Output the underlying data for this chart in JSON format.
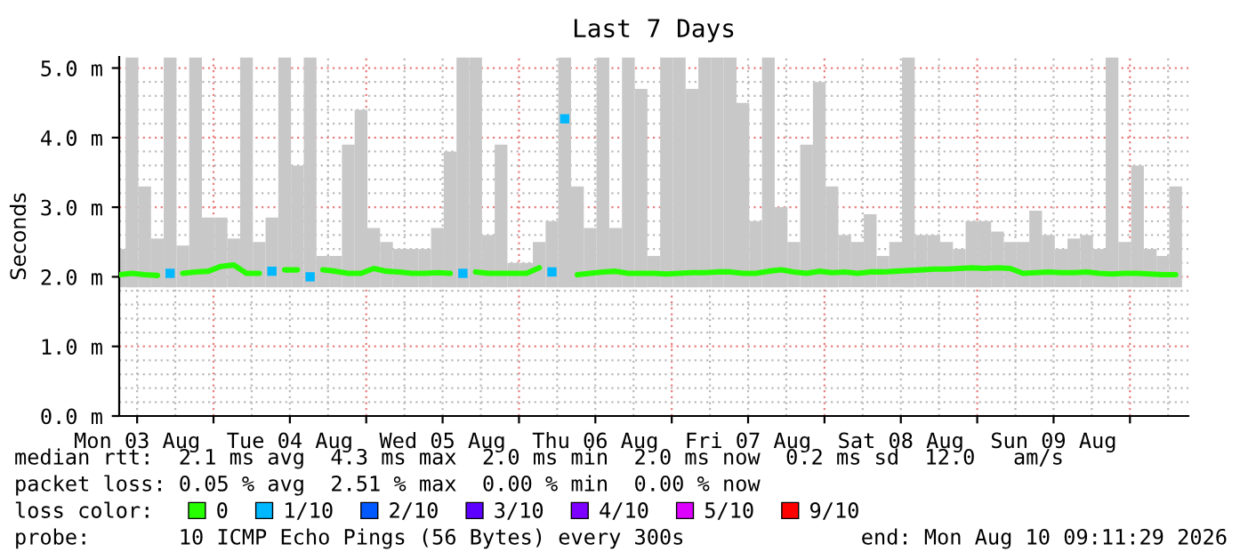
{
  "chart_data": {
    "type": "line",
    "title": "Last 7 Days",
    "ylabel": "Seconds",
    "legend_title": "loss color:",
    "x": [
      "2026-08-03T09:11",
      "2026-08-03T11:11",
      "2026-08-03T13:11",
      "2026-08-03T15:11",
      "2026-08-03T17:11",
      "2026-08-03T19:11",
      "2026-08-03T21:11",
      "2026-08-03T23:11",
      "2026-08-04T01:11",
      "2026-08-04T03:11",
      "2026-08-04T05:11",
      "2026-08-04T07:11",
      "2026-08-04T09:11",
      "2026-08-04T11:11",
      "2026-08-04T13:11",
      "2026-08-04T15:11",
      "2026-08-04T17:11",
      "2026-08-04T19:11",
      "2026-08-04T21:11",
      "2026-08-04T23:11",
      "2026-08-05T01:11",
      "2026-08-05T03:11",
      "2026-08-05T05:11",
      "2026-08-05T07:11",
      "2026-08-05T09:11",
      "2026-08-05T11:11",
      "2026-08-05T13:11",
      "2026-08-05T15:11",
      "2026-08-05T17:11",
      "2026-08-05T19:11",
      "2026-08-05T21:11",
      "2026-08-05T23:11",
      "2026-08-06T01:11",
      "2026-08-06T03:11",
      "2026-08-06T05:11",
      "2026-08-06T07:11",
      "2026-08-06T09:11",
      "2026-08-06T11:11",
      "2026-08-06T13:11",
      "2026-08-06T15:11",
      "2026-08-06T17:11",
      "2026-08-06T19:11",
      "2026-08-06T21:11",
      "2026-08-06T23:11",
      "2026-08-07T01:11",
      "2026-08-07T03:11",
      "2026-08-07T05:11",
      "2026-08-07T07:11",
      "2026-08-07T09:11",
      "2026-08-07T11:11",
      "2026-08-07T13:11",
      "2026-08-07T15:11",
      "2026-08-07T17:11",
      "2026-08-07T19:11",
      "2026-08-07T21:11",
      "2026-08-07T23:11",
      "2026-08-08T01:11",
      "2026-08-08T03:11",
      "2026-08-08T05:11",
      "2026-08-08T07:11",
      "2026-08-08T09:11",
      "2026-08-08T11:11",
      "2026-08-08T13:11",
      "2026-08-08T15:11",
      "2026-08-08T17:11",
      "2026-08-08T19:11",
      "2026-08-08T21:11",
      "2026-08-08T23:11",
      "2026-08-09T01:11",
      "2026-08-09T03:11",
      "2026-08-09T05:11",
      "2026-08-09T07:11",
      "2026-08-09T09:11",
      "2026-08-09T11:11",
      "2026-08-09T13:11",
      "2026-08-09T15:11",
      "2026-08-09T17:11",
      "2026-08-09T19:11",
      "2026-08-09T21:11",
      "2026-08-09T23:11",
      "2026-08-10T01:11",
      "2026-08-10T03:11",
      "2026-08-10T05:11",
      "2026-08-10T07:11"
    ],
    "series": [
      {
        "type": "bar",
        "color": "#c8c8c8",
        "values": [
          0.55,
          3.3,
          1.45,
          0.7,
          3.3,
          0.6,
          3.3,
          1.0,
          1.0,
          0.7,
          3.3,
          0.65,
          1.0,
          3.3,
          1.75,
          3.3,
          0.45,
          0.45,
          2.05,
          2.55,
          0.85,
          0.65,
          0.55,
          0.55,
          0.55,
          0.85,
          1.95,
          3.3,
          3.3,
          0.75,
          2.05,
          0.35,
          0.35,
          0.65,
          0.95,
          3.3,
          1.45,
          0.85,
          3.3,
          0.85,
          3.3,
          2.85,
          0.45,
          3.3,
          3.3,
          2.85,
          3.3,
          3.3,
          3.3,
          2.65,
          0.95,
          3.3,
          1.15,
          0.65,
          2.05,
          2.95,
          1.45,
          0.75,
          0.65,
          1.05,
          0.45,
          0.65,
          3.3,
          0.75,
          0.75,
          0.65,
          0.55,
          0.95,
          0.95,
          0.8,
          0.65,
          0.65,
          1.1,
          0.75,
          0.55,
          0.7,
          0.75,
          0.55,
          3.3,
          0.65,
          1.75,
          0.55,
          0.45,
          1.45
        ],
        "base": [
          1.85,
          1.85,
          1.85,
          1.85,
          1.85,
          1.85,
          1.85,
          1.85,
          1.85,
          1.85,
          1.85,
          1.85,
          1.85,
          1.85,
          1.85,
          1.85,
          1.85,
          1.85,
          1.85,
          1.85,
          1.85,
          1.85,
          1.85,
          1.85,
          1.85,
          1.85,
          1.85,
          1.85,
          1.85,
          1.85,
          1.85,
          1.85,
          1.85,
          1.85,
          1.85,
          1.85,
          1.85,
          1.85,
          1.85,
          1.85,
          1.85,
          1.85,
          1.85,
          1.85,
          1.85,
          1.85,
          1.85,
          1.85,
          1.85,
          1.85,
          1.85,
          1.85,
          1.85,
          1.85,
          1.85,
          1.85,
          1.85,
          1.85,
          1.85,
          1.85,
          1.85,
          1.85,
          1.85,
          1.85,
          1.85,
          1.85,
          1.85,
          1.85,
          1.85,
          1.85,
          1.85,
          1.85,
          1.85,
          1.85,
          1.85,
          1.85,
          1.85,
          1.85,
          1.85,
          1.85,
          1.85,
          1.85,
          1.85,
          1.85
        ]
      },
      {
        "name": "0",
        "color": "#26ff00",
        "values": [
          2.03,
          2.05,
          2.03,
          2.02,
          null,
          2.05,
          2.07,
          2.08,
          2.15,
          2.17,
          2.05,
          2.05,
          null,
          2.1,
          2.1,
          null,
          2.1,
          2.08,
          2.05,
          2.05,
          2.12,
          2.08,
          2.07,
          2.05,
          2.05,
          2.06,
          2.05,
          null,
          2.07,
          2.05,
          2.05,
          2.05,
          2.05,
          2.13,
          null,
          null,
          2.03,
          2.05,
          2.07,
          2.08,
          2.05,
          2.05,
          2.05,
          2.04,
          2.05,
          2.06,
          2.06,
          2.07,
          2.07,
          2.05,
          2.05,
          2.08,
          2.1,
          2.07,
          2.05,
          2.08,
          2.06,
          2.07,
          2.05,
          2.07,
          2.07,
          2.08,
          2.09,
          2.1,
          2.11,
          2.11,
          2.12,
          2.13,
          2.12,
          2.13,
          2.12,
          2.05,
          2.06,
          2.07,
          2.06,
          2.06,
          2.07,
          2.05,
          2.04,
          2.05,
          2.05,
          2.04,
          2.03,
          2.03
        ]
      },
      {
        "type": "scatter",
        "marker": "square",
        "name": "1/10",
        "color": "#00b8ff",
        "values": [
          null,
          null,
          null,
          null,
          2.05,
          null,
          null,
          null,
          null,
          null,
          null,
          null,
          2.08,
          null,
          null,
          2.0,
          null,
          null,
          null,
          null,
          null,
          null,
          null,
          null,
          null,
          null,
          null,
          2.05,
          null,
          null,
          null,
          null,
          null,
          null,
          2.07,
          4.27,
          null,
          null,
          null,
          null,
          null,
          null,
          null,
          null,
          null,
          null,
          null,
          null,
          null,
          null,
          null,
          null,
          null,
          null,
          null,
          null,
          null,
          null,
          null,
          null,
          null,
          null,
          null,
          null,
          null,
          null,
          null,
          null,
          null,
          null,
          null,
          null,
          null,
          null,
          null,
          null,
          null,
          null,
          null,
          null,
          null,
          null,
          null,
          null
        ]
      },
      {
        "type": "step",
        "name": "2/10",
        "color": "#0059ff",
        "values": [
          null,
          null,
          null,
          null,
          null,
          null,
          null,
          null,
          null,
          null,
          null,
          null,
          null,
          null,
          null,
          null,
          null,
          null,
          null,
          null,
          null,
          null,
          null,
          null,
          null,
          null,
          null,
          null,
          null,
          null,
          null,
          null,
          null,
          null,
          null,
          null,
          null,
          null,
          null,
          null,
          null,
          null,
          null,
          null,
          null,
          null,
          null,
          null,
          null,
          null,
          null,
          null,
          null,
          null,
          null,
          null,
          null,
          null,
          null,
          null,
          null,
          null,
          null,
          null,
          null,
          null,
          null,
          null,
          null,
          null,
          null,
          null,
          null,
          null,
          null,
          null,
          null,
          null,
          null,
          null,
          null,
          null,
          null,
          null
        ]
      },
      {
        "type": "step",
        "name": "3/10",
        "color": "#5e00ff",
        "values": [
          null,
          null,
          null,
          null,
          null,
          null,
          null,
          null,
          null,
          null,
          null,
          null,
          null,
          null,
          null,
          null,
          null,
          null,
          null,
          null,
          null,
          null,
          null,
          null,
          null,
          null,
          null,
          null,
          null,
          null,
          null,
          null,
          null,
          null,
          null,
          null,
          null,
          null,
          null,
          null,
          null,
          null,
          null,
          null,
          null,
          null,
          null,
          null,
          null,
          null,
          null,
          null,
          null,
          null,
          null,
          null,
          null,
          null,
          null,
          null,
          null,
          null,
          null,
          null,
          null,
          null,
          null,
          null,
          null,
          null,
          null,
          null,
          null,
          null,
          null,
          null,
          null,
          null,
          null,
          null,
          null,
          null,
          null,
          null
        ]
      },
      {
        "type": "step",
        "name": "4/10",
        "color": "#7e00ff",
        "values": [
          null,
          null,
          null,
          null,
          null,
          null,
          null,
          null,
          null,
          null,
          null,
          null,
          null,
          null,
          null,
          null,
          null,
          null,
          null,
          null,
          null,
          null,
          null,
          null,
          null,
          null,
          null,
          null,
          null,
          null,
          null,
          null,
          null,
          null,
          null,
          null,
          null,
          null,
          null,
          null,
          null,
          null,
          null,
          null,
          null,
          null,
          null,
          null,
          null,
          null,
          null,
          null,
          null,
          null,
          null,
          null,
          null,
          null,
          null,
          null,
          null,
          null,
          null,
          null,
          null,
          null,
          null,
          null,
          null,
          null,
          null,
          null,
          null,
          null,
          null,
          null,
          null,
          null,
          null,
          null,
          null,
          null,
          null,
          null
        ]
      },
      {
        "type": "step",
        "name": "5/10",
        "color": "#dd00ff",
        "values": [
          null,
          null,
          null,
          null,
          null,
          null,
          null,
          null,
          null,
          null,
          null,
          null,
          null,
          null,
          null,
          null,
          null,
          null,
          null,
          null,
          null,
          null,
          null,
          null,
          null,
          null,
          null,
          null,
          null,
          null,
          null,
          null,
          null,
          null,
          null,
          null,
          null,
          null,
          null,
          null,
          null,
          null,
          null,
          null,
          null,
          null,
          null,
          null,
          null,
          null,
          null,
          null,
          null,
          null,
          null,
          null,
          null,
          null,
          null,
          null,
          null,
          null,
          null,
          null,
          null,
          null,
          null,
          null,
          null,
          null,
          null,
          null,
          null,
          null,
          null,
          null,
          null,
          null,
          null,
          null,
          null,
          null,
          null,
          null
        ]
      },
      {
        "type": "step",
        "name": "9/10",
        "color": "#ff0000",
        "values": [
          null,
          null,
          null,
          null,
          null,
          null,
          null,
          null,
          null,
          null,
          null,
          null,
          null,
          null,
          null,
          null,
          null,
          null,
          null,
          null,
          null,
          null,
          null,
          null,
          null,
          null,
          null,
          null,
          null,
          null,
          null,
          null,
          null,
          null,
          null,
          null,
          null,
          null,
          null,
          null,
          null,
          null,
          null,
          null,
          null,
          null,
          null,
          null,
          null,
          null,
          null,
          null,
          null,
          null,
          null,
          null,
          null,
          null,
          null,
          null,
          null,
          null,
          null,
          null,
          null,
          null,
          null,
          null,
          null,
          null,
          null,
          null,
          null,
          null,
          null,
          null,
          null,
          null,
          null,
          null,
          null,
          null,
          null,
          null
        ]
      }
    ],
    "xlim": [
      "2026-08-03T09:11",
      "2026-08-10T09:11"
    ],
    "xticks": [
      {
        "value": "2026-08-03T12:00",
        "label": "Mon 03 Aug"
      },
      {
        "value": "2026-08-04T00:00",
        "label": null
      },
      {
        "value": "2026-08-04T12:00",
        "label": "Tue 04 Aug"
      },
      {
        "value": "2026-08-05T00:00",
        "label": null
      },
      {
        "value": "2026-08-05T12:00",
        "label": "Wed 05 Aug"
      },
      {
        "value": "2026-08-06T00:00",
        "label": null
      },
      {
        "value": "2026-08-06T12:00",
        "label": "Thu 06 Aug"
      },
      {
        "value": "2026-08-07T00:00",
        "label": null
      },
      {
        "value": "2026-08-07T12:00",
        "label": "Fri 07 Aug"
      },
      {
        "value": "2026-08-08T00:00",
        "label": null
      },
      {
        "value": "2026-08-08T12:00",
        "label": "Sat 08 Aug"
      },
      {
        "value": "2026-08-09T00:00",
        "label": null
      },
      {
        "value": "2026-08-09T12:00",
        "label": "Sun 09 Aug"
      },
      {
        "value": "2026-08-10T00:00",
        "label": null
      }
    ],
    "ylim": [
      0,
      5.16
    ],
    "yticks": [
      {
        "value": 0,
        "label": "0.0 m"
      },
      {
        "value": 1,
        "label": "1.0 m"
      },
      {
        "value": 2,
        "label": "2.0 m"
      },
      {
        "value": 3,
        "label": "3.0 m"
      },
      {
        "value": 4,
        "label": "4.0 m"
      },
      {
        "value": 5,
        "label": "5.0 m"
      }
    ],
    "grid": true,
    "legend": "bottom",
    "annotations": [
      "median rtt:  2.1 ms avg  4.3 ms max  2.0 ms min  2.0 ms now  0.2 ms sd  12.0   am/s",
      "packet loss: 0.05 % avg  2.51 % max  0.00 % min  0.00 % now",
      "probe:       10 ICMP Echo Pings (56 Bytes) every 300s",
      "end: Mon Aug 10 09:11:29 2026"
    ]
  }
}
